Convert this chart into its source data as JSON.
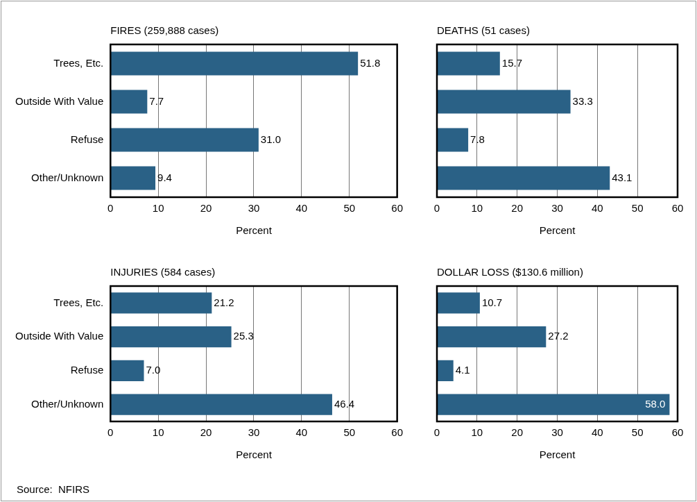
{
  "chart_data": [
    {
      "type": "bar",
      "orientation": "horizontal",
      "title": "FIRES (259,888 cases)",
      "xlabel": "Percent",
      "categories": [
        "Trees, Etc.",
        "Outside With Value",
        "Refuse",
        "Other/Unknown"
      ],
      "values": [
        51.8,
        7.7,
        31.0,
        9.4
      ],
      "value_labels": [
        "51.8",
        "7.7",
        "31.0",
        "9.4"
      ],
      "color": "#2a6186",
      "xlim": [
        0,
        60
      ],
      "xticks": [
        0,
        10,
        20,
        30,
        40,
        50,
        60
      ],
      "grid": "x"
    },
    {
      "type": "bar",
      "orientation": "horizontal",
      "title": "DEATHS (51 cases)",
      "xlabel": "Percent",
      "categories": [
        null,
        null,
        null,
        null
      ],
      "values": [
        15.7,
        33.3,
        7.8,
        43.1
      ],
      "value_labels": [
        "15.7",
        "33.3",
        "7.8",
        "43.1"
      ],
      "color": "#2a6186",
      "xlim": [
        0,
        60
      ],
      "xticks": [
        0,
        10,
        20,
        30,
        40,
        50,
        60
      ],
      "grid": "x",
      "tick_labels": "x"
    },
    {
      "type": "bar",
      "orientation": "horizontal",
      "title": "INJURIES (584 cases)",
      "xlabel": "Percent",
      "categories": [
        "Trees, Etc.",
        "Outside With Value",
        "Refuse",
        "Other/Unknown"
      ],
      "values": [
        21.2,
        25.3,
        7.0,
        46.4
      ],
      "value_labels": [
        "21.2",
        "25.3",
        "7.0",
        "46.4"
      ],
      "color": "#2a6186",
      "xlim": [
        0,
        60
      ],
      "xticks": [
        0,
        10,
        20,
        30,
        40,
        50,
        60
      ],
      "grid": "x",
      "annotations": [
        "Source:  NFIRS"
      ]
    },
    {
      "type": "bar",
      "orientation": "horizontal",
      "title": "DOLLAR LOSS ($130.6 million)",
      "xlabel": "Percent",
      "categories": [
        null,
        null,
        null,
        null
      ],
      "values": [
        10.7,
        27.2,
        4.1,
        58.0
      ],
      "value_labels": [
        "10.7",
        "27.2",
        "4.1",
        "58.0"
      ],
      "color": "#2a6186",
      "xlim": [
        0,
        60
      ],
      "xticks": [
        0,
        10,
        20,
        30,
        40,
        50,
        60
      ],
      "grid": "x",
      "tick_labels": "x"
    }
  ]
}
